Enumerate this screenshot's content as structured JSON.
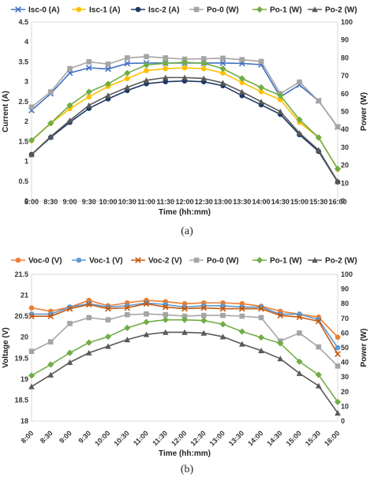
{
  "chart_data": [
    {
      "type": "line",
      "caption": "(a)",
      "categories": [
        "8:00",
        "8:30",
        "9:00",
        "9:30",
        "10:00",
        "10:30",
        "11:00",
        "11:30",
        "12:00",
        "12:30",
        "13:00",
        "13:30",
        "14:00",
        "14:30",
        "15:00",
        "15:30",
        "16:00"
      ],
      "xlabel": "Time (hh:mm)",
      "ylabel": "Current (A)",
      "y2label": "Power (W)",
      "ylim": [
        0,
        4.5
      ],
      "yticks": [
        0,
        0.5,
        1,
        1.5,
        2,
        2.5,
        3,
        3.5,
        4,
        4.5
      ],
      "ylim2": [
        0,
        100
      ],
      "yticks2": [
        0,
        10,
        20,
        30,
        40,
        50,
        60,
        70,
        80,
        90,
        100
      ],
      "legend_position": "top",
      "series": [
        {
          "name": "Isc-0 (A)",
          "axis": "left",
          "color": "#4472c4",
          "marker": "x",
          "values": [
            2.28,
            2.7,
            3.22,
            3.35,
            3.32,
            3.46,
            3.47,
            3.47,
            3.47,
            3.47,
            3.47,
            3.46,
            3.43,
            2.62,
            2.92,
            2.52,
            1.86
          ]
        },
        {
          "name": "Isc-1 (A)",
          "axis": "left",
          "color": "#ffc000",
          "marker": "circle",
          "values": [
            1.52,
            1.95,
            2.32,
            2.62,
            2.88,
            3.08,
            3.28,
            3.33,
            3.35,
            3.33,
            3.22,
            2.98,
            2.75,
            2.55,
            1.98,
            1.6,
            0.8
          ]
        },
        {
          "name": "Isc-2 (A)",
          "axis": "left",
          "color": "#1f3864",
          "marker": "circle",
          "values": [
            1.17,
            1.6,
            1.98,
            2.33,
            2.57,
            2.78,
            2.95,
            3.0,
            3.02,
            3.0,
            2.9,
            2.65,
            2.42,
            2.18,
            1.67,
            1.25,
            0.48
          ]
        },
        {
          "name": "Po-0 (W)",
          "axis": "right",
          "color": "#a5a5a5",
          "marker": "square",
          "values": [
            52.5,
            61.0,
            74.0,
            77.8,
            76.5,
            80.0,
            80.7,
            80.0,
            79.3,
            79.5,
            79.8,
            79.0,
            78.0,
            60.0,
            66.5,
            56.0,
            41.5
          ]
        },
        {
          "name": "Po-1 (W)",
          "axis": "right",
          "color": "#70ad47",
          "marker": "diamond",
          "values": [
            34.0,
            43.5,
            53.5,
            61.0,
            65.5,
            71.5,
            76.0,
            77.0,
            77.5,
            77.0,
            74.0,
            68.5,
            63.5,
            59.0,
            45.5,
            35.5,
            18.0
          ]
        },
        {
          "name": "Po-2 (W)",
          "axis": "right",
          "color": "#595959",
          "marker": "triangle",
          "values": [
            26.0,
            36.0,
            45.0,
            53.5,
            59.0,
            63.5,
            67.5,
            69.0,
            69.0,
            68.5,
            66.0,
            61.0,
            55.5,
            50.0,
            38.0,
            28.5,
            11.0
          ]
        }
      ]
    },
    {
      "type": "line",
      "caption": "(b)",
      "categories": [
        "8:00",
        "8:30",
        "9:00",
        "9:30",
        "10:00",
        "10:30",
        "11:00",
        "11:30",
        "12:00",
        "12:30",
        "13:00",
        "13:30",
        "14:00",
        "14:30",
        "15:00",
        "15:30",
        "16:00"
      ],
      "xlabel": "Time (hh:mm)",
      "ylabel": "Voltage (V)",
      "y2label": "Power (W)",
      "ylim": [
        18,
        21.5
      ],
      "yticks": [
        18,
        18.5,
        19,
        19.5,
        20,
        20.5,
        21,
        21.5
      ],
      "ylim2": [
        0,
        100
      ],
      "yticks2": [
        0,
        10,
        20,
        30,
        40,
        50,
        60,
        70,
        80,
        90,
        100
      ],
      "legend_position": "top",
      "series": [
        {
          "name": "Voc-0 (V)",
          "axis": "left",
          "color": "#ed7d31",
          "marker": "circle",
          "values": [
            20.7,
            20.62,
            20.72,
            20.88,
            20.75,
            20.82,
            20.88,
            20.85,
            20.8,
            20.82,
            20.82,
            20.8,
            20.74,
            20.62,
            20.55,
            20.48,
            20.0
          ]
        },
        {
          "name": "Voc-1 (V)",
          "axis": "left",
          "color": "#5b9bd5",
          "marker": "circle",
          "values": [
            20.55,
            20.55,
            20.72,
            20.8,
            20.72,
            20.75,
            20.82,
            20.78,
            20.72,
            20.75,
            20.75,
            20.72,
            20.72,
            20.55,
            20.55,
            20.42,
            19.75
          ]
        },
        {
          "name": "Voc-2 (V)",
          "axis": "left",
          "color": "#c55a11",
          "marker": "x",
          "values": [
            20.5,
            20.5,
            20.68,
            20.78,
            20.68,
            20.7,
            20.8,
            20.72,
            20.68,
            20.7,
            20.68,
            20.68,
            20.68,
            20.52,
            20.48,
            20.38,
            19.6
          ]
        },
        {
          "name": "Po-0 (W)",
          "axis": "right",
          "color": "#a5a5a5",
          "marker": "square",
          "values": [
            47.5,
            54.0,
            66.5,
            70.5,
            69.0,
            72.5,
            73.0,
            72.5,
            71.5,
            72.0,
            72.0,
            71.5,
            70.5,
            54.5,
            60.0,
            50.5,
            37.5
          ]
        },
        {
          "name": "Po-1 (W)",
          "axis": "right",
          "color": "#70ad47",
          "marker": "diamond",
          "values": [
            31.0,
            38.5,
            46.5,
            53.5,
            57.5,
            63.5,
            67.5,
            69.0,
            69.0,
            68.5,
            66.0,
            61.0,
            57.0,
            53.0,
            40.5,
            31.5,
            13.0
          ]
        },
        {
          "name": "Po-2 (W)",
          "axis": "right",
          "color": "#595959",
          "marker": "triangle",
          "values": [
            23.5,
            31.5,
            40.0,
            46.5,
            51.0,
            55.5,
            59.0,
            60.5,
            60.5,
            60.0,
            57.5,
            52.5,
            48.0,
            42.5,
            32.5,
            24.0,
            5.5
          ]
        }
      ]
    }
  ]
}
